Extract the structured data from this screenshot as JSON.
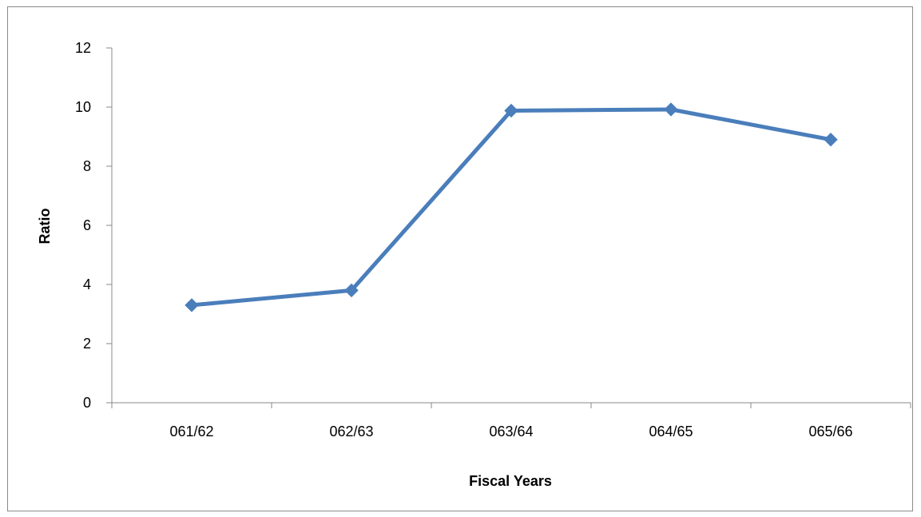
{
  "chart_data": {
    "type": "line",
    "title": "",
    "xlabel": "Fiscal Years",
    "ylabel": "Ratio",
    "categories": [
      "061/62",
      "062/63",
      "063/64",
      "064/65",
      "065/66"
    ],
    "series": [
      {
        "values": [
          3.3,
          3.8,
          9.88,
          9.92,
          8.9
        ],
        "color": "#4a7ebb",
        "marker": "diamond"
      }
    ],
    "ylim": [
      0,
      12
    ],
    "yticks": [
      0,
      2,
      4,
      6,
      8,
      10,
      12
    ],
    "ytick_labels": [
      "0",
      "2",
      "4",
      "6",
      "8",
      "10",
      "12"
    ],
    "grid": false,
    "legend": "none"
  }
}
